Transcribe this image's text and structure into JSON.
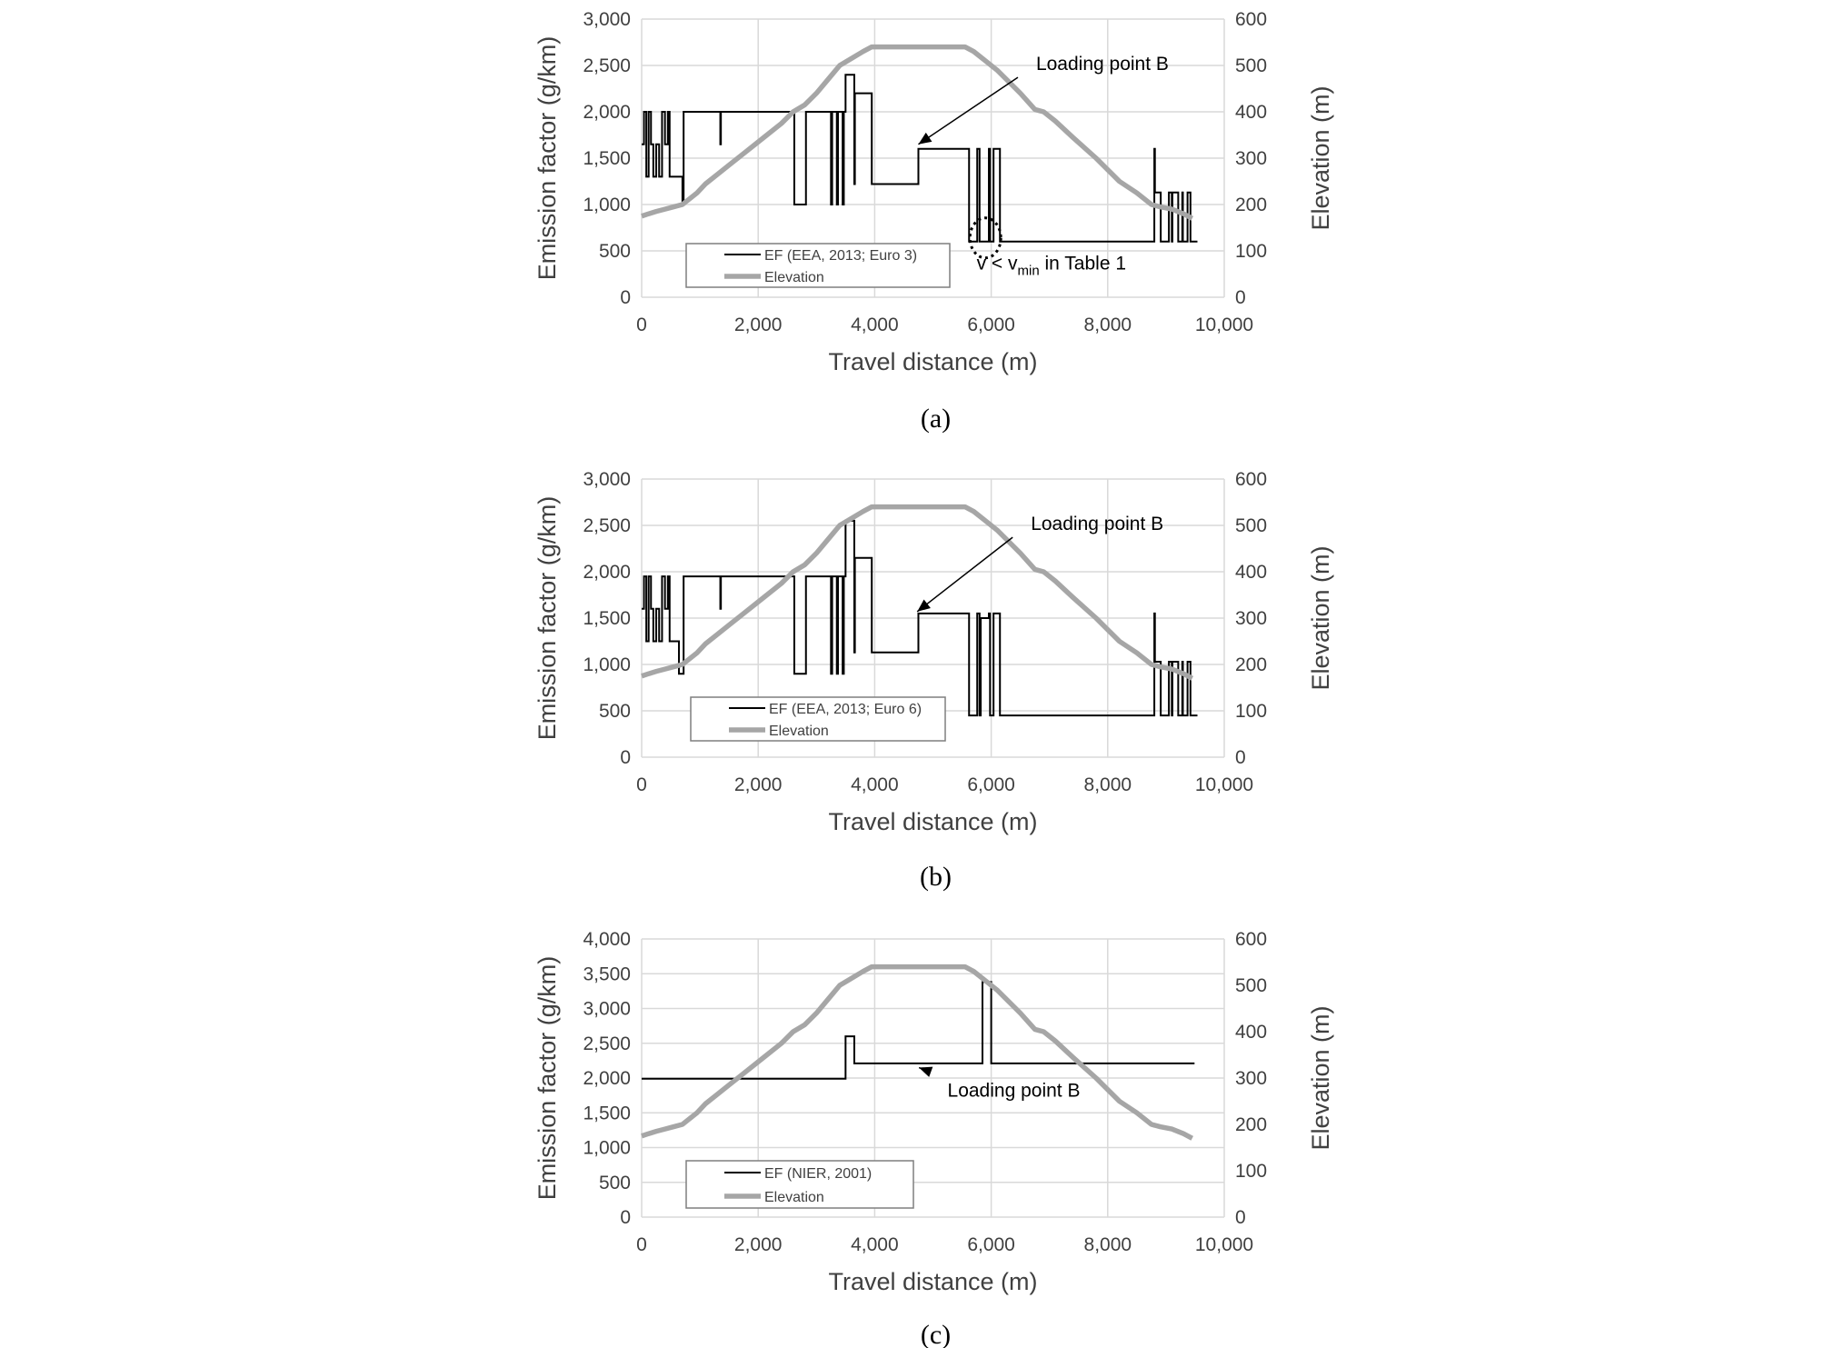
{
  "colors": {
    "grid": "#d9d9d9",
    "ef_line": "#000000",
    "elevation_line": "#a6a6a6",
    "text": "#404040"
  },
  "chart_data": [
    {
      "panel": "(a)",
      "type": "line",
      "xlabel": "Travel distance (m)",
      "ylabel": "Emission factor  (g/km)",
      "y2label": "Elevation (m)",
      "xlim": [
        0,
        10000
      ],
      "ylim": [
        0,
        3000
      ],
      "y2lim": [
        0,
        600
      ],
      "xticks": [
        "0",
        "2,000",
        "4,000",
        "6,000",
        "8,000",
        "10,000"
      ],
      "yticks": [
        "0",
        "500",
        "1,000",
        "1,500",
        "2,000",
        "2,500",
        "3,000"
      ],
      "y2ticks": [
        "0",
        "100",
        "200",
        "300",
        "400",
        "500",
        "600"
      ],
      "grid": true,
      "legend_position": "bottom-left",
      "series": [
        {
          "name": "EF (EEA, 2013; Euro 3)",
          "axis": "left",
          "step": true,
          "x": [
            0,
            40,
            80,
            120,
            160,
            200,
            250,
            300,
            350,
            400,
            450,
            480,
            520,
            560,
            640,
            700,
            720,
            1350,
            1360,
            2620,
            2640,
            2800,
            2820,
            3250,
            3270,
            3350,
            3370,
            3450,
            3470,
            3500,
            3520,
            3650,
            3660,
            3700,
            3720,
            3950,
            3960,
            4750,
            4760,
            5620,
            5640,
            5750,
            5760,
            5800,
            5820,
            5960,
            5980,
            6020,
            6040,
            6150,
            6170,
            6250,
            6260,
            6830,
            6850,
            8800,
            8810,
            8900,
            8910,
            9050,
            9060,
            9100,
            9110,
            9200,
            9210,
            9280,
            9290,
            9350,
            9370,
            9420,
            9440,
            9500
          ],
          "values": [
            1650,
            2000,
            1300,
            2000,
            1650,
            1300,
            1650,
            1300,
            2000,
            1650,
            2000,
            1300,
            1300,
            1300,
            1300,
            1000,
            2000,
            1650,
            2000,
            1000,
            1000,
            1000,
            2000,
            1000,
            2000,
            1000,
            2000,
            1000,
            2000,
            2400,
            2400,
            1220,
            2200,
            2200,
            2200,
            1220,
            1220,
            1600,
            1600,
            600,
            600,
            600,
            1600,
            600,
            600,
            1600,
            600,
            600,
            1600,
            600,
            600,
            600,
            600,
            600,
            600,
            1600,
            1130,
            1130,
            600,
            1130,
            1130,
            600,
            1130,
            1130,
            600,
            1130,
            600,
            600,
            1130,
            600,
            600,
            600
          ]
        },
        {
          "name": "Elevation",
          "axis": "right",
          "x": [
            0,
            120,
            250,
            400,
            550,
            700,
            800,
            950,
            1100,
            1300,
            1500,
            1800,
            2100,
            2400,
            2600,
            2800,
            3000,
            3200,
            3400,
            3600,
            3800,
            3950,
            4200,
            4500,
            5000,
            5300,
            5550,
            5700,
            5900,
            6100,
            6300,
            6500,
            6750,
            6900,
            7100,
            7400,
            7800,
            8200,
            8500,
            8750,
            8900,
            9100,
            9300,
            9450
          ],
          "values": [
            175,
            180,
            185,
            190,
            195,
            200,
            210,
            225,
            245,
            265,
            285,
            315,
            345,
            375,
            400,
            415,
            440,
            470,
            500,
            515,
            530,
            540,
            540,
            540,
            540,
            540,
            540,
            530,
            510,
            490,
            465,
            440,
            405,
            400,
            380,
            345,
            300,
            250,
            225,
            200,
            195,
            190,
            180,
            170
          ]
        }
      ],
      "annotations": [
        {
          "text": "Loading point B",
          "x": 6770,
          "y": 2450,
          "arrow_to": [
            4750,
            1650
          ]
        },
        {
          "text": "v < v",
          "subscript": "min",
          "suffix": " in Table 1",
          "x": 5750,
          "y": 300,
          "ellipse_center": [
            5900,
            640
          ]
        }
      ]
    },
    {
      "panel": "(b)",
      "type": "line",
      "xlabel": "Travel distance (m)",
      "ylabel": "Emission factor  (g/km)",
      "y2label": "Elevation (m)",
      "xlim": [
        0,
        10000
      ],
      "ylim": [
        0,
        3000
      ],
      "y2lim": [
        0,
        600
      ],
      "xticks": [
        "0",
        "2,000",
        "4,000",
        "6,000",
        "8,000",
        "10,000"
      ],
      "yticks": [
        "0",
        "500",
        "1,000",
        "1,500",
        "2,000",
        "2,500",
        "3,000"
      ],
      "y2ticks": [
        "0",
        "100",
        "200",
        "300",
        "400",
        "500",
        "600"
      ],
      "grid": true,
      "legend_position": "bottom-left",
      "series": [
        {
          "name": "EF (EEA, 2013; Euro 6)",
          "axis": "left",
          "step": true,
          "x": [
            0,
            40,
            80,
            120,
            160,
            200,
            250,
            300,
            350,
            400,
            450,
            480,
            520,
            560,
            640,
            700,
            720,
            1350,
            1360,
            2620,
            2640,
            2800,
            2820,
            3250,
            3270,
            3350,
            3370,
            3450,
            3470,
            3500,
            3520,
            3650,
            3660,
            3700,
            3720,
            3950,
            3960,
            4750,
            4760,
            5620,
            5640,
            5750,
            5760,
            5800,
            5820,
            5960,
            5980,
            6020,
            6040,
            6150,
            6170,
            6250,
            6260,
            6830,
            6850,
            8800,
            8810,
            8900,
            8910,
            9050,
            9060,
            9100,
            9110,
            9200,
            9210,
            9280,
            9290,
            9350,
            9370,
            9420,
            9440,
            9500
          ],
          "values": [
            1600,
            1950,
            1250,
            1950,
            1600,
            1250,
            1600,
            1250,
            1950,
            1600,
            1950,
            1250,
            1250,
            1250,
            900,
            900,
            1950,
            1600,
            1950,
            900,
            900,
            900,
            1950,
            900,
            1950,
            900,
            1950,
            900,
            1950,
            2550,
            2550,
            1130,
            2150,
            2150,
            2150,
            1130,
            1130,
            1550,
            1550,
            450,
            450,
            450,
            1550,
            450,
            1500,
            1550,
            450,
            450,
            1550,
            450,
            450,
            450,
            450,
            450,
            450,
            1550,
            1030,
            1030,
            450,
            1030,
            1030,
            450,
            1030,
            1030,
            450,
            1030,
            450,
            450,
            1030,
            450,
            450,
            450
          ]
        },
        {
          "name": "Elevation",
          "axis": "right",
          "x": [
            0,
            120,
            250,
            400,
            550,
            700,
            800,
            950,
            1100,
            1300,
            1500,
            1800,
            2100,
            2400,
            2600,
            2800,
            3000,
            3200,
            3400,
            3600,
            3800,
            3950,
            4200,
            4500,
            5000,
            5300,
            5550,
            5700,
            5900,
            6100,
            6300,
            6500,
            6750,
            6900,
            7100,
            7400,
            7800,
            8200,
            8500,
            8750,
            8900,
            9100,
            9300,
            9450
          ],
          "values": [
            175,
            180,
            185,
            190,
            195,
            200,
            210,
            225,
            245,
            265,
            285,
            315,
            345,
            375,
            400,
            415,
            440,
            470,
            500,
            515,
            530,
            540,
            540,
            540,
            540,
            540,
            540,
            530,
            510,
            490,
            465,
            440,
            405,
            400,
            380,
            345,
            300,
            250,
            225,
            200,
            195,
            190,
            180,
            170
          ]
        }
      ],
      "annotations": [
        {
          "text": "Loading point B",
          "x": 6680,
          "y": 2450,
          "arrow_to": [
            4730,
            1570
          ]
        }
      ]
    },
    {
      "panel": "(c)",
      "type": "line",
      "xlabel": "Travel distance (m)",
      "ylabel": "Emission factor  (g/km)",
      "y2label": "Elevation (m)",
      "xlim": [
        0,
        10000
      ],
      "ylim": [
        0,
        4000
      ],
      "y2lim": [
        0,
        600
      ],
      "xticks": [
        "0",
        "2,000",
        "4,000",
        "6,000",
        "8,000",
        "10,000"
      ],
      "yticks": [
        "0",
        "500",
        "1,000",
        "1,500",
        "2,000",
        "2,500",
        "3,000",
        "3,500",
        "4,000"
      ],
      "y2ticks": [
        "0",
        "100",
        "200",
        "300",
        "400",
        "500",
        "600"
      ],
      "grid": true,
      "legend_position": "bottom-left",
      "series": [
        {
          "name": "EF (NIER, 2001)",
          "axis": "left",
          "step": true,
          "x": [
            0,
            3500,
            3650,
            5850,
            6000,
            9450
          ],
          "values": [
            1990,
            2600,
            2210,
            3380,
            2210,
            2210
          ]
        },
        {
          "name": "Elevation",
          "axis": "right",
          "x": [
            0,
            120,
            250,
            400,
            550,
            700,
            800,
            950,
            1100,
            1300,
            1500,
            1800,
            2100,
            2400,
            2600,
            2800,
            3000,
            3200,
            3400,
            3600,
            3800,
            3950,
            4200,
            4500,
            5000,
            5300,
            5550,
            5700,
            5900,
            6100,
            6300,
            6500,
            6750,
            6900,
            7100,
            7400,
            7800,
            8200,
            8500,
            8750,
            8900,
            9100,
            9300,
            9450
          ],
          "values": [
            175,
            180,
            185,
            190,
            195,
            200,
            210,
            225,
            245,
            265,
            285,
            315,
            345,
            375,
            400,
            415,
            440,
            470,
            500,
            515,
            530,
            540,
            540,
            540,
            540,
            540,
            540,
            530,
            510,
            490,
            465,
            440,
            405,
            400,
            380,
            345,
            300,
            250,
            225,
            200,
            195,
            190,
            180,
            170
          ]
        }
      ],
      "annotations": [
        {
          "text": "Loading point B",
          "x": 5250,
          "y": 1730,
          "arrow_to": [
            4760,
            2150
          ]
        }
      ]
    }
  ]
}
